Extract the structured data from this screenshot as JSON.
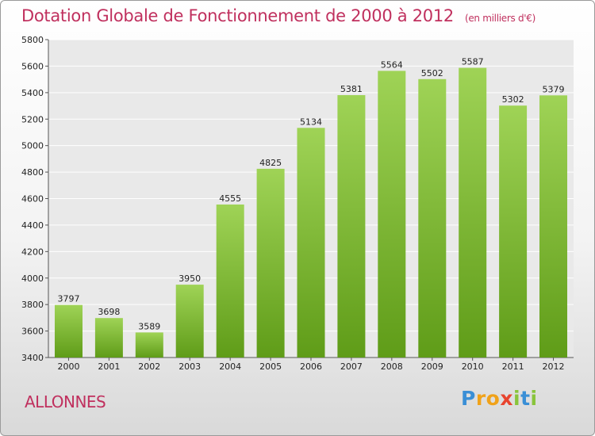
{
  "header": {
    "title": "Dotation Globale de Fonctionnement de 2000 à 2012",
    "unit": "(en milliers d'€)"
  },
  "footer": {
    "city": "ALLONNES",
    "logo": "Proxiti"
  },
  "colors": {
    "title": "#c0305e",
    "bar_top": "#9fd356",
    "bar_bottom": "#5f9c18"
  },
  "chart_data": {
    "type": "bar",
    "title": "Dotation Globale de Fonctionnement de 2000 à 2012",
    "subtitle": "(en milliers d'€)",
    "categories": [
      "2000",
      "2001",
      "2002",
      "2003",
      "2004",
      "2005",
      "2006",
      "2007",
      "2008",
      "2009",
      "2010",
      "2011",
      "2012"
    ],
    "values": [
      3797,
      3698,
      3589,
      3950,
      4555,
      4825,
      5134,
      5381,
      5564,
      5502,
      5587,
      5302,
      5379
    ],
    "ylim": [
      3400,
      5800
    ],
    "yticks": [
      3400,
      3600,
      3800,
      4000,
      4200,
      4400,
      4600,
      4800,
      5000,
      5200,
      5400,
      5600,
      5800
    ],
    "grid": true,
    "xlabel": "",
    "ylabel": ""
  }
}
